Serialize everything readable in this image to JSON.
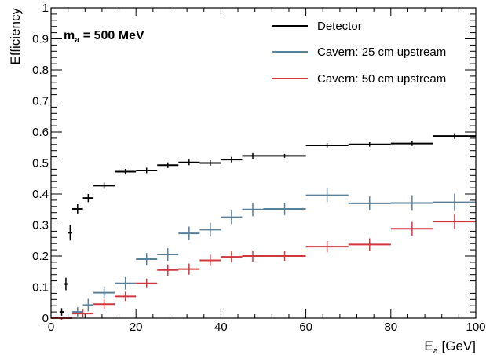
{
  "chart_data": {
    "type": "scatter",
    "xlabel": "E",
    "xlabel_sub": "a",
    "xlabel_unit": " [GeV]",
    "ylabel": "Efficiency",
    "xlim": [
      0,
      100
    ],
    "ylim": [
      0,
      1
    ],
    "x_ticks": [
      "0",
      "20",
      "40",
      "60",
      "80",
      "100"
    ],
    "y_ticks": [
      "0",
      "0.1",
      "0.2",
      "0.3",
      "0.4",
      "0.5",
      "0.6",
      "0.7",
      "0.8",
      "0.9",
      "1"
    ],
    "grid": false,
    "legend_position": "top-right",
    "annotation": {
      "prefix": "m",
      "sub": "a",
      "suffix": " = 500 MeV"
    },
    "series": [
      {
        "name": "Detector",
        "color": "#000000",
        "points": [
          {
            "x": 1.5,
            "xerr": 0.5,
            "y": 0.0,
            "yerr": 0.0
          },
          {
            "x": 2.5,
            "xerr": 0.5,
            "y": 0.02,
            "yerr": 0.012
          },
          {
            "x": 3.5,
            "xerr": 0.5,
            "y": 0.11,
            "yerr": 0.02
          },
          {
            "x": 4.5,
            "xerr": 0.5,
            "y": 0.275,
            "yerr": 0.025
          },
          {
            "x": 6.25,
            "xerr": 1.25,
            "y": 0.352,
            "yerr": 0.015
          },
          {
            "x": 8.75,
            "xerr": 1.25,
            "y": 0.387,
            "yerr": 0.013
          },
          {
            "x": 12.5,
            "xerr": 2.5,
            "y": 0.427,
            "yerr": 0.01
          },
          {
            "x": 17.5,
            "xerr": 2.5,
            "y": 0.472,
            "yerr": 0.009
          },
          {
            "x": 22.5,
            "xerr": 2.5,
            "y": 0.476,
            "yerr": 0.009
          },
          {
            "x": 27.5,
            "xerr": 2.5,
            "y": 0.493,
            "yerr": 0.009
          },
          {
            "x": 32.5,
            "xerr": 2.5,
            "y": 0.502,
            "yerr": 0.009
          },
          {
            "x": 37.5,
            "xerr": 2.5,
            "y": 0.5,
            "yerr": 0.009
          },
          {
            "x": 42.5,
            "xerr": 2.5,
            "y": 0.511,
            "yerr": 0.009
          },
          {
            "x": 47.5,
            "xerr": 2.5,
            "y": 0.523,
            "yerr": 0.009
          },
          {
            "x": 55,
            "xerr": 5,
            "y": 0.523,
            "yerr": 0.006
          },
          {
            "x": 65,
            "xerr": 5,
            "y": 0.557,
            "yerr": 0.007
          },
          {
            "x": 75,
            "xerr": 5,
            "y": 0.56,
            "yerr": 0.007
          },
          {
            "x": 85,
            "xerr": 5,
            "y": 0.563,
            "yerr": 0.008
          },
          {
            "x": 95,
            "xerr": 5,
            "y": 0.587,
            "yerr": 0.009
          }
        ]
      },
      {
        "name": "Cavern: 25 cm upstream",
        "color": "#5a7f99",
        "points": [
          {
            "x": 2.5,
            "xerr": 2.5,
            "y": 0.0,
            "yerr": 0.005
          },
          {
            "x": 6.25,
            "xerr": 1.25,
            "y": 0.02,
            "yerr": 0.015
          },
          {
            "x": 8.75,
            "xerr": 1.25,
            "y": 0.042,
            "yerr": 0.02
          },
          {
            "x": 12.5,
            "xerr": 2.5,
            "y": 0.082,
            "yerr": 0.02
          },
          {
            "x": 17.5,
            "xerr": 2.5,
            "y": 0.112,
            "yerr": 0.02
          },
          {
            "x": 22.5,
            "xerr": 2.5,
            "y": 0.19,
            "yerr": 0.02
          },
          {
            "x": 27.5,
            "xerr": 2.5,
            "y": 0.205,
            "yerr": 0.02
          },
          {
            "x": 32.5,
            "xerr": 2.5,
            "y": 0.273,
            "yerr": 0.022
          },
          {
            "x": 37.5,
            "xerr": 2.5,
            "y": 0.285,
            "yerr": 0.022
          },
          {
            "x": 42.5,
            "xerr": 2.5,
            "y": 0.325,
            "yerr": 0.022
          },
          {
            "x": 47.5,
            "xerr": 2.5,
            "y": 0.35,
            "yerr": 0.022
          },
          {
            "x": 55,
            "xerr": 5,
            "y": 0.352,
            "yerr": 0.02
          },
          {
            "x": 65,
            "xerr": 5,
            "y": 0.396,
            "yerr": 0.022
          },
          {
            "x": 75,
            "xerr": 5,
            "y": 0.37,
            "yerr": 0.022
          },
          {
            "x": 85,
            "xerr": 5,
            "y": 0.371,
            "yerr": 0.025
          },
          {
            "x": 95,
            "xerr": 5,
            "y": 0.373,
            "yerr": 0.028
          }
        ]
      },
      {
        "name": "Cavern: 50 cm upstream",
        "color": "#d0383e",
        "points": [
          {
            "x": 2.5,
            "xerr": 2.5,
            "y": 0.0,
            "yerr": 0.005
          },
          {
            "x": 7.5,
            "xerr": 2.5,
            "y": 0.015,
            "yerr": 0.012
          },
          {
            "x": 12.5,
            "xerr": 2.5,
            "y": 0.045,
            "yerr": 0.015
          },
          {
            "x": 17.5,
            "xerr": 2.5,
            "y": 0.07,
            "yerr": 0.015
          },
          {
            "x": 22.5,
            "xerr": 2.5,
            "y": 0.112,
            "yerr": 0.015
          },
          {
            "x": 27.5,
            "xerr": 2.5,
            "y": 0.155,
            "yerr": 0.018
          },
          {
            "x": 32.5,
            "xerr": 2.5,
            "y": 0.158,
            "yerr": 0.018
          },
          {
            "x": 37.5,
            "xerr": 2.5,
            "y": 0.186,
            "yerr": 0.018
          },
          {
            "x": 42.5,
            "xerr": 2.5,
            "y": 0.197,
            "yerr": 0.018
          },
          {
            "x": 47.5,
            "xerr": 2.5,
            "y": 0.2,
            "yerr": 0.018
          },
          {
            "x": 55,
            "xerr": 5,
            "y": 0.2,
            "yerr": 0.015
          },
          {
            "x": 65,
            "xerr": 5,
            "y": 0.23,
            "yerr": 0.018
          },
          {
            "x": 75,
            "xerr": 5,
            "y": 0.237,
            "yerr": 0.02
          },
          {
            "x": 85,
            "xerr": 5,
            "y": 0.288,
            "yerr": 0.022
          },
          {
            "x": 95,
            "xerr": 5,
            "y": 0.311,
            "yerr": 0.025
          }
        ]
      }
    ]
  }
}
